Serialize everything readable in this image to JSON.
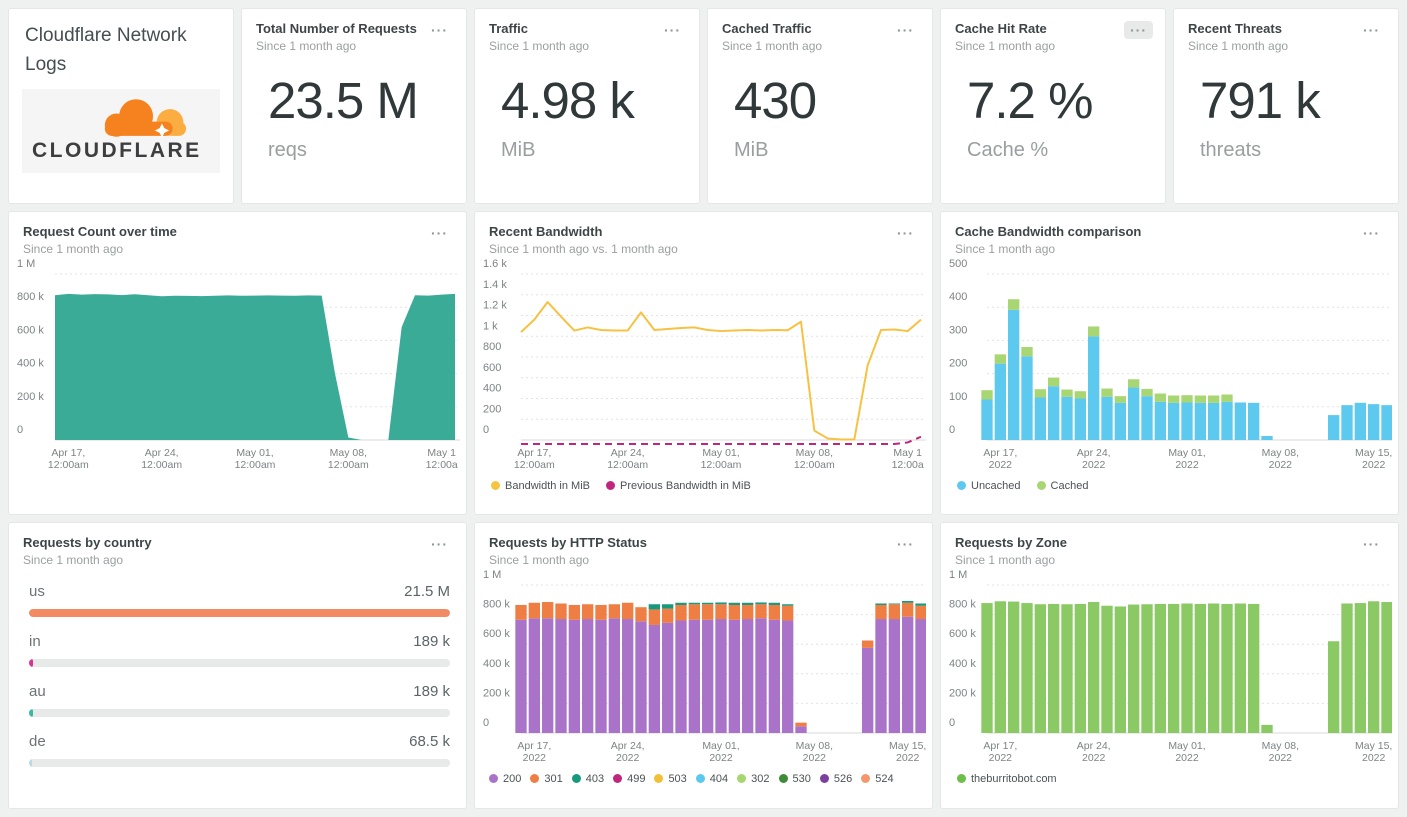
{
  "app": {
    "title": "Cloudflare Network Logs",
    "logo_text": "CLOUDFLARE"
  },
  "icons": {
    "ellipsis": "···"
  },
  "colors": {
    "page_bg": "#eff1f0",
    "panel_bg": "#ffffff",
    "title_text": "#3e4547",
    "subtitle_text": "#9b9fa0",
    "stat_text": "#30383a",
    "area_teal": "#39ab96",
    "line_yellow": "#f7c243",
    "line_magenta": "#c0267e",
    "bar_uncached_blue": "#5ec9ef",
    "bar_cached_green": "#a8d672",
    "zone_green": "#8bc965",
    "http_200_purple": "#a973c9",
    "http_301_orange": "#ef7e45",
    "cloudflare_orange": "#f6821f",
    "cloudflare_light_orange": "#fbad41"
  },
  "stats": [
    {
      "title": "Total Number of Requests",
      "subtitle": "Since 1 month ago",
      "value": "23.5 M",
      "unit": "reqs"
    },
    {
      "title": "Traffic",
      "subtitle": "Since 1 month ago",
      "value": "4.98 k",
      "unit": "MiB"
    },
    {
      "title": "Cached Traffic",
      "subtitle": "Since 1 month ago",
      "value": "430",
      "unit": "MiB"
    },
    {
      "title": "Cache Hit Rate",
      "subtitle": "Since 1 month ago",
      "value": "7.2 %",
      "unit": "Cache %"
    },
    {
      "title": "Recent Threats",
      "subtitle": "Since 1 month ago",
      "value": "791 k",
      "unit": "threats"
    }
  ],
  "chart_data": [
    {
      "id": "request_count",
      "type": "area",
      "title": "Request Count over time",
      "subtitle": "Since 1 month ago",
      "values_unit": "thousands of requests",
      "categories": [
        "Apr 16",
        "Apr 17",
        "Apr 18",
        "Apr 19",
        "Apr 20",
        "Apr 21",
        "Apr 22",
        "Apr 23",
        "Apr 24",
        "Apr 25",
        "Apr 26",
        "Apr 27",
        "Apr 28",
        "Apr 29",
        "Apr 30",
        "May 01",
        "May 02",
        "May 03",
        "May 04",
        "May 05",
        "May 06",
        "May 07",
        "May 08",
        "May 09",
        "May 10",
        "May 11",
        "May 12",
        "May 13",
        "May 14",
        "May 15",
        "May 16"
      ],
      "ylim": [
        0,
        1000
      ],
      "y_ticks": [
        {
          "v": 0,
          "t": "0"
        },
        {
          "v": 200,
          "t": "200 k"
        },
        {
          "v": 400,
          "t": "400 k"
        },
        {
          "v": 600,
          "t": "600 k"
        },
        {
          "v": 800,
          "t": "800 k"
        },
        {
          "v": 1000,
          "t": "1 M"
        }
      ],
      "x_ticks": [
        {
          "i": 1,
          "l": [
            "Apr 17,",
            "12:00am"
          ]
        },
        {
          "i": 8,
          "l": [
            "Apr 24,",
            "12:00am"
          ]
        },
        {
          "i": 15,
          "l": [
            "May 01,",
            "12:00am"
          ]
        },
        {
          "i": 22,
          "l": [
            "May 08,",
            "12:00am"
          ]
        },
        {
          "i": 29,
          "l": [
            "May 1",
            "12:00a"
          ]
        }
      ],
      "series": [
        {
          "name": "Requests",
          "color": "#39ab96",
          "values": [
            872,
            880,
            876,
            879,
            877,
            873,
            878,
            872,
            866,
            869,
            868,
            867,
            869,
            871,
            869,
            870,
            871,
            870,
            869,
            871,
            870,
            400,
            15,
            0,
            0,
            0,
            680,
            872,
            870,
            876,
            880
          ]
        }
      ]
    },
    {
      "id": "recent_bandwidth",
      "type": "line",
      "title": "Recent Bandwidth",
      "subtitle": "Since 1 month ago vs. 1 month ago",
      "values_unit": "MiB",
      "categories": [
        "Apr 16",
        "Apr 17",
        "Apr 18",
        "Apr 19",
        "Apr 20",
        "Apr 21",
        "Apr 22",
        "Apr 23",
        "Apr 24",
        "Apr 25",
        "Apr 26",
        "Apr 27",
        "Apr 28",
        "Apr 29",
        "Apr 30",
        "May 01",
        "May 02",
        "May 03",
        "May 04",
        "May 05",
        "May 06",
        "May 07",
        "May 08",
        "May 09",
        "May 10",
        "May 11",
        "May 12",
        "May 13",
        "May 14",
        "May 15",
        "May 16"
      ],
      "ylim": [
        0,
        1600
      ],
      "y_ticks": [
        {
          "v": 0,
          "t": "0"
        },
        {
          "v": 200,
          "t": "200"
        },
        {
          "v": 400,
          "t": "400"
        },
        {
          "v": 600,
          "t": "600"
        },
        {
          "v": 800,
          "t": "800"
        },
        {
          "v": 1000,
          "t": "1 k"
        },
        {
          "v": 1200,
          "t": "1.2 k"
        },
        {
          "v": 1400,
          "t": "1.4 k"
        },
        {
          "v": 1600,
          "t": "1.6 k"
        }
      ],
      "x_ticks": [
        {
          "i": 1,
          "l": [
            "Apr 17,",
            "12:00am"
          ]
        },
        {
          "i": 8,
          "l": [
            "Apr 24,",
            "12:00am"
          ]
        },
        {
          "i": 15,
          "l": [
            "May 01,",
            "12:00am"
          ]
        },
        {
          "i": 22,
          "l": [
            "May 08,",
            "12:00am"
          ]
        },
        {
          "i": 29,
          "l": [
            "May 1",
            "12:00a"
          ]
        }
      ],
      "legend": [
        {
          "label": "Bandwidth in MiB",
          "color": "#f5c542"
        },
        {
          "label": "Previous Bandwidth in MiB",
          "color": "#c0267e"
        }
      ],
      "series": [
        {
          "name": "Bandwidth in MiB",
          "color": "#f7c243",
          "values": [
            1040,
            1160,
            1330,
            1190,
            1055,
            1085,
            1060,
            1055,
            1055,
            1230,
            1060,
            1070,
            1080,
            1085,
            1060,
            1050,
            1055,
            1060,
            1055,
            1060,
            1058,
            1140,
            90,
            15,
            5,
            5,
            720,
            1060,
            1065,
            1050,
            1160
          ]
        },
        {
          "name": "Previous Bandwidth in MiB",
          "color": "#c0267e",
          "dash": true,
          "dy": 4,
          "values": [
            0,
            0,
            0,
            0,
            0,
            0,
            0,
            0,
            0,
            0,
            0,
            0,
            0,
            0,
            0,
            0,
            0,
            0,
            0,
            0,
            0,
            0,
            0,
            0,
            0,
            0,
            0,
            0,
            0,
            15,
            70
          ]
        }
      ]
    },
    {
      "id": "cache_bandwidth",
      "type": "bar",
      "title": "Cache Bandwidth comparison",
      "subtitle": "Since 1 month ago",
      "values_unit": "MiB",
      "categories": [
        "Apr 16",
        "Apr 17",
        "Apr 18",
        "Apr 19",
        "Apr 20",
        "Apr 21",
        "Apr 22",
        "Apr 23",
        "Apr 24",
        "Apr 25",
        "Apr 26",
        "Apr 27",
        "Apr 28",
        "Apr 29",
        "Apr 30",
        "May 01",
        "May 02",
        "May 03",
        "May 04",
        "May 05",
        "May 06",
        "May 07",
        "May 08",
        "May 09",
        "May 10",
        "May 11",
        "May 12",
        "May 13",
        "May 14",
        "May 15",
        "May 16"
      ],
      "ylim": [
        0,
        500
      ],
      "y_ticks": [
        {
          "v": 0,
          "t": "0"
        },
        {
          "v": 100,
          "t": "100"
        },
        {
          "v": 200,
          "t": "200"
        },
        {
          "v": 300,
          "t": "300"
        },
        {
          "v": 400,
          "t": "400"
        },
        {
          "v": 500,
          "t": "500"
        }
      ],
      "x_ticks": [
        {
          "i": 1,
          "l": [
            "Apr 17,",
            "2022"
          ]
        },
        {
          "i": 8,
          "l": [
            "Apr 24,",
            "2022"
          ]
        },
        {
          "i": 15,
          "l": [
            "May 01,",
            "2022"
          ]
        },
        {
          "i": 22,
          "l": [
            "May 08,",
            "2022"
          ]
        },
        {
          "i": 29,
          "l": [
            "May 15,",
            "2022"
          ]
        }
      ],
      "legend": [
        {
          "label": "Uncached",
          "color": "#5ec9ef"
        },
        {
          "label": "Cached",
          "color": "#a8d672"
        }
      ],
      "series": [
        {
          "name": "Uncached",
          "color": "#5ec9ef",
          "values": [
            122,
            230,
            392,
            252,
            128,
            162,
            130,
            125,
            312,
            130,
            112,
            158,
            132,
            115,
            112,
            113,
            112,
            112,
            115,
            113,
            112,
            12,
            0,
            0,
            0,
            0,
            75,
            105,
            112,
            108,
            105
          ]
        },
        {
          "name": "Cached",
          "color": "#a8d672",
          "values": [
            28,
            28,
            32,
            28,
            25,
            26,
            22,
            22,
            30,
            25,
            20,
            25,
            22,
            25,
            22,
            22,
            22,
            22,
            22,
            0,
            0,
            0,
            0,
            0,
            0,
            0,
            0,
            0,
            0,
            0,
            0
          ]
        }
      ]
    },
    {
      "id": "requests_by_country",
      "type": "hbar",
      "title": "Requests by country",
      "subtitle": "Since 1 month ago",
      "rows": [
        {
          "label": "us",
          "value": "21.5 M",
          "pct": 100,
          "color": "#f28a64"
        },
        {
          "label": "in",
          "value": "189 k",
          "pct": 1,
          "color": "#d6368f"
        },
        {
          "label": "au",
          "value": "189 k",
          "pct": 1,
          "color": "#3cb9a0"
        },
        {
          "label": "de",
          "value": "68.5 k",
          "pct": 0.5,
          "color": "#bcd9e8"
        }
      ]
    },
    {
      "id": "http_status",
      "type": "bar",
      "title": "Requests by HTTP Status",
      "subtitle": "Since 1 month ago",
      "values_unit": "thousands of requests",
      "categories": [
        "Apr 16",
        "Apr 17",
        "Apr 18",
        "Apr 19",
        "Apr 20",
        "Apr 21",
        "Apr 22",
        "Apr 23",
        "Apr 24",
        "Apr 25",
        "Apr 26",
        "Apr 27",
        "Apr 28",
        "Apr 29",
        "Apr 30",
        "May 01",
        "May 02",
        "May 03",
        "May 04",
        "May 05",
        "May 06",
        "May 07",
        "May 08",
        "May 09",
        "May 10",
        "May 11",
        "May 12",
        "May 13",
        "May 14",
        "May 15",
        "May 16"
      ],
      "ylim": [
        0,
        1000
      ],
      "y_ticks": [
        {
          "v": 0,
          "t": "0"
        },
        {
          "v": 200,
          "t": "200 k"
        },
        {
          "v": 400,
          "t": "400 k"
        },
        {
          "v": 600,
          "t": "600 k"
        },
        {
          "v": 800,
          "t": "800 k"
        },
        {
          "v": 1000,
          "t": "1 M"
        }
      ],
      "x_ticks": [
        {
          "i": 1,
          "l": [
            "Apr 17,",
            "2022"
          ]
        },
        {
          "i": 8,
          "l": [
            "Apr 24,",
            "2022"
          ]
        },
        {
          "i": 15,
          "l": [
            "May 01,",
            "2022"
          ]
        },
        {
          "i": 22,
          "l": [
            "May 08,",
            "2022"
          ]
        },
        {
          "i": 29,
          "l": [
            "May 15,",
            "2022"
          ]
        }
      ],
      "legend": [
        {
          "label": "200",
          "color": "#a973c9"
        },
        {
          "label": "301",
          "color": "#ef7e45"
        },
        {
          "label": "403",
          "color": "#17997e"
        },
        {
          "label": "499",
          "color": "#c0267e"
        },
        {
          "label": "503",
          "color": "#f2c037"
        },
        {
          "label": "404",
          "color": "#5bc8ee"
        },
        {
          "label": "302",
          "color": "#a5d76e"
        },
        {
          "label": "530",
          "color": "#3d8b37"
        },
        {
          "label": "526",
          "color": "#7c3f9e"
        },
        {
          "label": "524",
          "color": "#f4976e"
        }
      ],
      "series": [
        {
          "name": "200",
          "color": "#a973c9",
          "values": [
            765,
            775,
            775,
            770,
            765,
            770,
            765,
            775,
            770,
            755,
            730,
            745,
            760,
            765,
            765,
            770,
            765,
            770,
            775,
            765,
            760,
            45,
            0,
            0,
            0,
            0,
            575,
            770,
            770,
            785,
            770
          ]
        },
        {
          "name": "301",
          "color": "#ef7e45",
          "values": [
            100,
            105,
            110,
            105,
            100,
            100,
            100,
            95,
            110,
            95,
            105,
            95,
            105,
            105,
            105,
            100,
            100,
            95,
            95,
            100,
            100,
            25,
            0,
            0,
            0,
            0,
            50,
            95,
            100,
            95,
            90
          ]
        },
        {
          "name": "403",
          "color": "#17997e",
          "values": [
            0,
            0,
            0,
            0,
            0,
            0,
            0,
            0,
            0,
            0,
            35,
            30,
            15,
            10,
            10,
            12,
            15,
            15,
            12,
            15,
            10,
            0,
            0,
            0,
            0,
            0,
            0,
            10,
            5,
            12,
            15
          ]
        }
      ]
    },
    {
      "id": "requests_by_zone",
      "type": "bar",
      "title": "Requests by Zone",
      "subtitle": "Since 1 month ago",
      "values_unit": "thousands of requests",
      "categories": [
        "Apr 16",
        "Apr 17",
        "Apr 18",
        "Apr 19",
        "Apr 20",
        "Apr 21",
        "Apr 22",
        "Apr 23",
        "Apr 24",
        "Apr 25",
        "Apr 26",
        "Apr 27",
        "Apr 28",
        "Apr 29",
        "Apr 30",
        "May 01",
        "May 02",
        "May 03",
        "May 04",
        "May 05",
        "May 06",
        "May 07",
        "May 08",
        "May 09",
        "May 10",
        "May 11",
        "May 12",
        "May 13",
        "May 14",
        "May 15",
        "May 16"
      ],
      "ylim": [
        0,
        1000
      ],
      "y_ticks": [
        {
          "v": 0,
          "t": "0"
        },
        {
          "v": 200,
          "t": "200 k"
        },
        {
          "v": 400,
          "t": "400 k"
        },
        {
          "v": 600,
          "t": "600 k"
        },
        {
          "v": 800,
          "t": "800 k"
        },
        {
          "v": 1000,
          "t": "1 M"
        }
      ],
      "x_ticks": [
        {
          "i": 1,
          "l": [
            "Apr 17,",
            "2022"
          ]
        },
        {
          "i": 8,
          "l": [
            "Apr 24,",
            "2022"
          ]
        },
        {
          "i": 15,
          "l": [
            "May 01,",
            "2022"
          ]
        },
        {
          "i": 22,
          "l": [
            "May 08,",
            "2022"
          ]
        },
        {
          "i": 29,
          "l": [
            "May 15,",
            "2022"
          ]
        }
      ],
      "legend": [
        {
          "label": "theburritobot.com",
          "color": "#6cbf4b"
        }
      ],
      "series": [
        {
          "name": "theburritobot.com",
          "color": "#8bc965",
          "values": [
            878,
            890,
            888,
            878,
            870,
            872,
            870,
            872,
            885,
            860,
            855,
            868,
            870,
            872,
            872,
            875,
            872,
            875,
            872,
            875,
            872,
            55,
            0,
            0,
            0,
            0,
            620,
            875,
            878,
            890,
            885
          ]
        }
      ]
    }
  ]
}
